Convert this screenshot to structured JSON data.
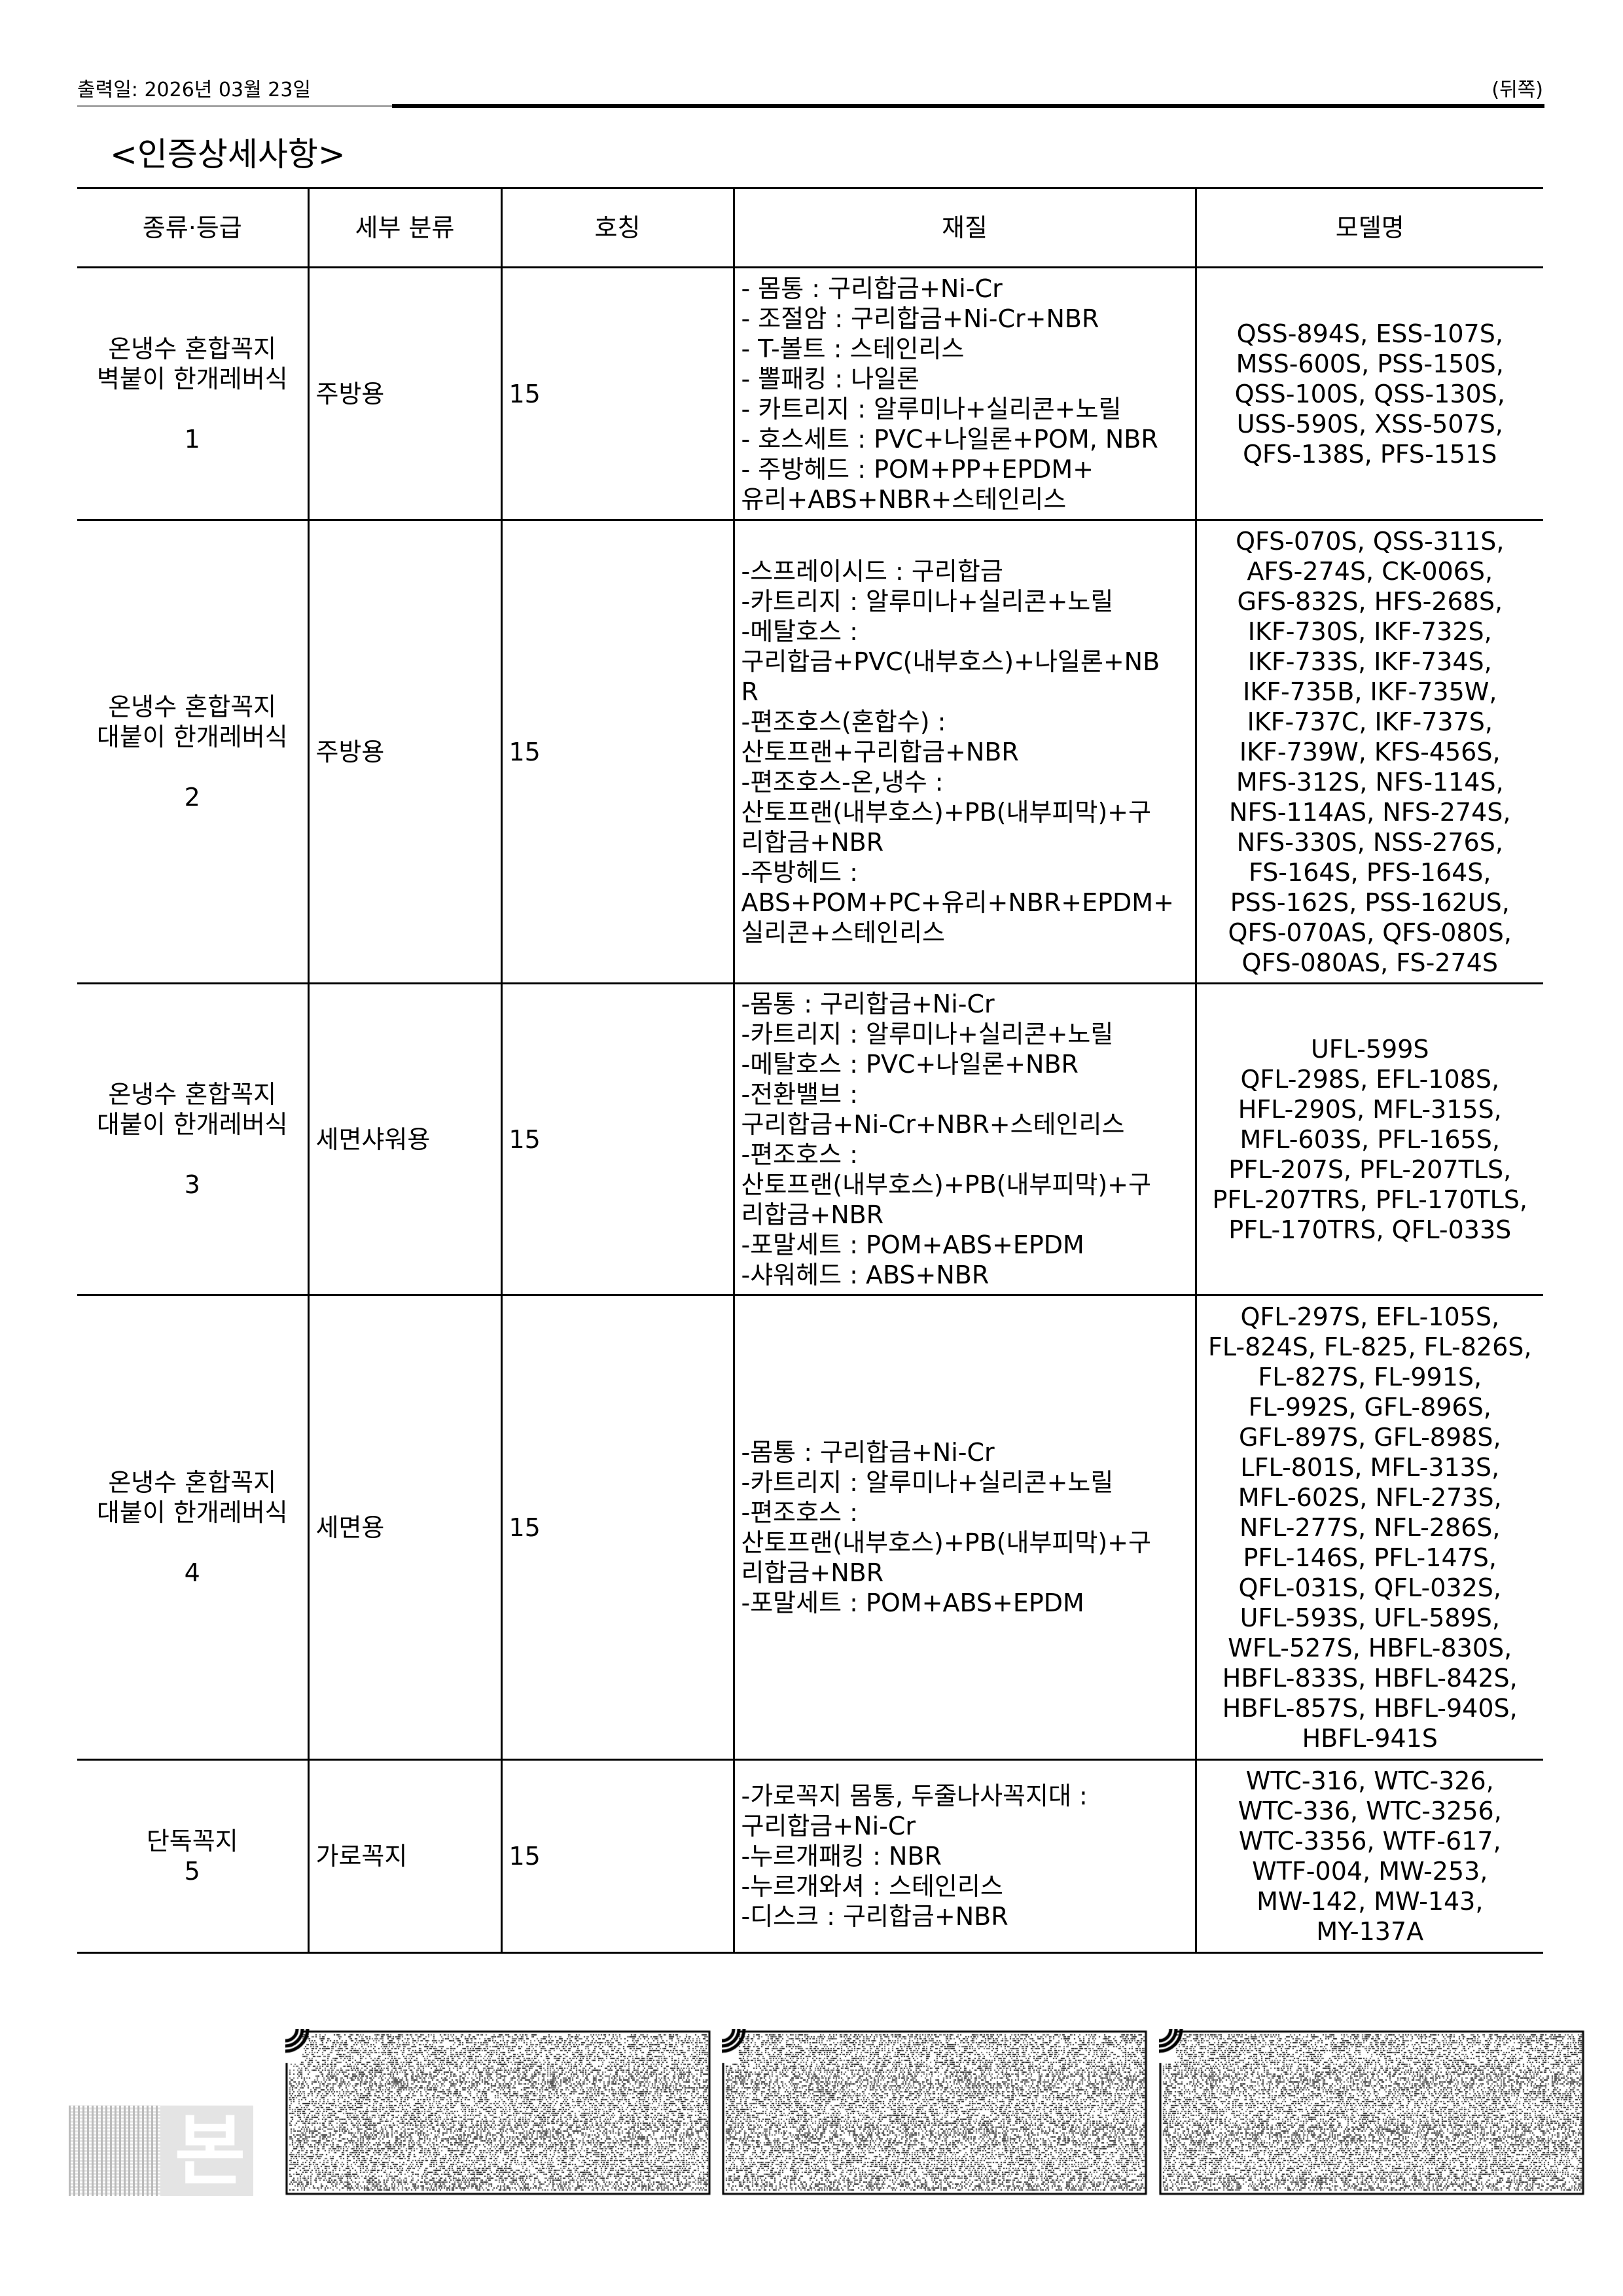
{
  "header": {
    "print_date": "출력일: 2026년 03월 23일",
    "side": "(뒤쪽)"
  },
  "title": "<인증상세사항>",
  "table": {
    "columns": [
      "종류·등급",
      "세부 분류",
      "호칭",
      "재질",
      "모델명"
    ],
    "rows": [
      {
        "type": [
          "온냉수 혼합꼭지",
          "벽붙이 한개레버식",
          "",
          "1"
        ],
        "sub": "주방용",
        "size": "15",
        "material": [
          "- 몸통 : 구리합금+Ni-Cr",
          "- 조절암 : 구리합금+Ni-Cr+NBR",
          "- T-볼트 : 스테인리스",
          "- 뽈패킹 : 나일론",
          "- 카트리지 : 알루미나+실리콘+노릴",
          "- 호스세트 : PVC+나일론+POM, NBR",
          "- 주방헤드 : POM+PP+EPDM+",
          "유리+ABS+NBR+스테인리스"
        ],
        "models": [
          "QSS-894S, ESS-107S,",
          "MSS-600S, PSS-150S,",
          "QSS-100S, QSS-130S,",
          "USS-590S, XSS-507S,",
          "QFS-138S, PFS-151S"
        ]
      },
      {
        "type": [
          "온냉수 혼합꼭지",
          "대붙이 한개레버식",
          "",
          "2"
        ],
        "sub": "주방용",
        "size": "15",
        "material": [
          "-스프레이시드 : 구리합금",
          "-카트리지 : 알루미나+실리콘+노릴",
          "-메탈호스 :",
          "구리합금+PVC(내부호스)+나일론+NB",
          "R",
          "-편조호스(혼합수) :",
          "산토프랜+구리합금+NBR",
          "-편조호스-온,냉수 :",
          "산토프랜(내부호스)+PB(내부피막)+구",
          "리합금+NBR",
          "-주방헤드 :",
          "ABS+POM+PC+유리+NBR+EPDM+",
          "실리콘+스테인리스"
        ],
        "models": [
          "QFS-070S, QSS-311S,",
          "AFS-274S, CK-006S,",
          "GFS-832S,  HFS-268S,",
          "IKF-730S, IKF-732S,",
          "IKF-733S, IKF-734S,",
          "IKF-735B, IKF-735W,",
          "IKF-737C, IKF-737S,",
          "IKF-739W, KFS-456S,",
          "MFS-312S, NFS-114S,",
          "NFS-114AS, NFS-274S,",
          "NFS-330S, NSS-276S,",
          "FS-164S, PFS-164S,",
          "PSS-162S, PSS-162US,",
          "QFS-070AS, QFS-080S,",
          "QFS-080AS, FS-274S"
        ]
      },
      {
        "type": [
          "온냉수 혼합꼭지",
          "대붙이 한개레버식",
          "",
          "3"
        ],
        "sub": "세면샤워용",
        "size": "15",
        "material": [
          "-몸통 : 구리합금+Ni-Cr",
          "-카트리지 : 알루미나+실리콘+노릴",
          "-메탈호스 : PVC+나일론+NBR",
          "-전환밸브 :",
          "구리합금+Ni-Cr+NBR+스테인리스",
          "-편조호스 :",
          "산토프랜(내부호스)+PB(내부피막)+구",
          "리합금+NBR",
          "-포말세트 : POM+ABS+EPDM",
          "-샤워헤드 : ABS+NBR"
        ],
        "models": [
          "UFL-599S",
          "QFL-298S, EFL-108S,",
          "HFL-290S, MFL-315S,",
          "MFL-603S, PFL-165S,",
          "PFL-207S, PFL-207TLS,",
          "PFL-207TRS, PFL-170TLS,",
          "PFL-170TRS, QFL-033S"
        ]
      },
      {
        "type": [
          "온냉수 혼합꼭지",
          "대붙이 한개레버식",
          "",
          "4"
        ],
        "sub": "세면용",
        "size": "15",
        "material": [
          "-몸통 : 구리합금+Ni-Cr",
          "-카트리지 : 알루미나+실리콘+노릴",
          "-편조호스 :",
          "산토프랜(내부호스)+PB(내부피막)+구",
          "리합금+NBR",
          "-포말세트 : POM+ABS+EPDM"
        ],
        "models": [
          "QFL-297S, EFL-105S,",
          "FL-824S, FL-825, FL-826S,",
          "FL-827S, FL-991S,",
          "FL-992S, GFL-896S,",
          "GFL-897S, GFL-898S,",
          "LFL-801S, MFL-313S,",
          "MFL-602S, NFL-273S,",
          "NFL-277S, NFL-286S,",
          "PFL-146S, PFL-147S,",
          "QFL-031S, QFL-032S,",
          "UFL-593S, UFL-589S,",
          "WFL-527S, HBFL-830S,",
          "HBFL-833S, HBFL-842S,",
          "HBFL-857S, HBFL-940S,",
          "HBFL-941S"
        ]
      },
      {
        "type": [
          "단독꼭지",
          "5"
        ],
        "sub": "가로꼭지",
        "size": "15",
        "material": [
          "-가로꼭지 몸통, 두줄나사꼭지대 :",
          "구리합금+Ni-Cr",
          "-누르개패킹 : NBR",
          "-누르개와셔 : 스테인리스",
          "-디스크 : 구리합금+NBR"
        ],
        "models": [
          "WTC-316, WTC-326,",
          "WTC-336, WTC-3256,",
          "WTC-3356, WTF-617,",
          "WTF-004, MW-253,",
          "MW-142, MW-143,",
          "MY-137A"
        ]
      }
    ]
  },
  "watermark": {
    "text": "본"
  },
  "barcodes": [
    {
      "icon": "2d-barcode"
    },
    {
      "icon": "2d-barcode"
    },
    {
      "icon": "2d-barcode"
    }
  ]
}
